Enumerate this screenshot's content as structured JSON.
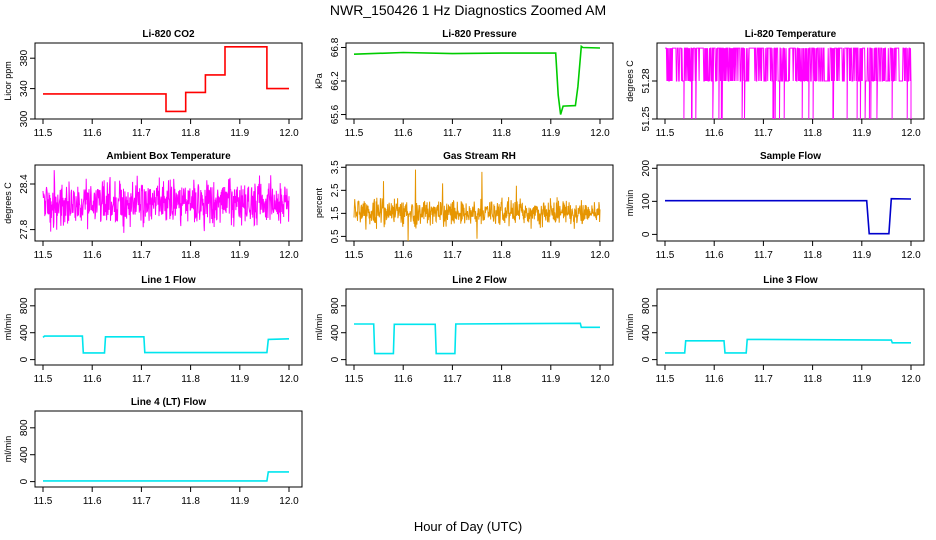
{
  "figure": {
    "title": "NWR_150426  1 Hz Diagnostics Zoomed AM",
    "xlabel": "Hour of Day (UTC)"
  },
  "chart_data": [
    {
      "type": "line",
      "title": "Li-820 CO2",
      "ylabel": "Licor ppm",
      "color": "#ff0000",
      "xlim": [
        11.5,
        12.0
      ],
      "ylim": [
        300,
        400
      ],
      "xticks": [
        "11.5",
        "11.6",
        "11.7",
        "11.8",
        "11.9",
        "12.0"
      ],
      "yticks": [
        300,
        340,
        380
      ],
      "ytick_labels": [
        "300",
        "340",
        "380"
      ],
      "series": [
        {
          "x": [
            11.5,
            11.75,
            11.75,
            11.79,
            11.79,
            11.83,
            11.83,
            11.87,
            11.87,
            11.955,
            11.955,
            12.0
          ],
          "y": [
            333,
            333,
            310,
            310,
            335,
            335,
            358,
            358,
            395,
            395,
            340,
            340
          ]
        }
      ]
    },
    {
      "type": "line",
      "title": "Li-820 Pressure",
      "ylabel": "kPa",
      "color": "#00cc00",
      "xlim": [
        11.5,
        12.0
      ],
      "ylim": [
        65.52,
        66.88
      ],
      "xticks": [
        "11.5",
        "11.6",
        "11.7",
        "11.8",
        "11.9",
        "12.0"
      ],
      "yticks": [
        65.6,
        66.2,
        66.8
      ],
      "ytick_labels": [
        "65.6",
        "66.2",
        "66.8"
      ],
      "series": [
        {
          "x": [
            11.5,
            11.6,
            11.7,
            11.8,
            11.91,
            11.915,
            11.92,
            11.925,
            11.95,
            11.955,
            11.962,
            11.965,
            12.0
          ],
          "y": [
            66.68,
            66.71,
            66.69,
            66.7,
            66.7,
            65.95,
            65.6,
            65.75,
            65.76,
            66.1,
            66.82,
            66.8,
            66.79
          ]
        }
      ]
    },
    {
      "type": "line",
      "title": "Li-820 Temperature",
      "ylabel": "degrees C",
      "color": "#ff00ff",
      "xlim": [
        11.5,
        12.0
      ],
      "ylim": [
        51.25,
        51.31
      ],
      "xticks": [
        "11.5",
        "11.6",
        "11.7",
        "11.8",
        "11.9",
        "12.0"
      ],
      "yticks": [
        51.25,
        51.28
      ],
      "ytick_labels": [
        "51.25",
        "51.28"
      ],
      "series": [
        {
          "x": [
            11.5,
            12.0
          ],
          "y": [
            51.28,
            51.28
          ],
          "noise": "toggle",
          "values": [
            51.28,
            51.306
          ]
        }
      ]
    },
    {
      "type": "line",
      "title": "Ambient Box Temperature",
      "ylabel": "degrees C",
      "color": "#ff00ff",
      "xlim": [
        11.5,
        12.0
      ],
      "ylim": [
        27.65,
        28.65
      ],
      "xticks": [
        "11.5",
        "11.6",
        "11.7",
        "11.8",
        "11.9",
        "12.0"
      ],
      "yticks": [
        27.8,
        28.4
      ],
      "ytick_labels": [
        "27.8",
        "28.4"
      ],
      "series": [
        {
          "x": [
            11.5,
            12.0
          ],
          "y": [
            28.2,
            28.2
          ],
          "noise": "dense",
          "range": [
            27.7,
            28.62
          ]
        }
      ]
    },
    {
      "type": "line",
      "title": "Gas Stream RH",
      "ylabel": "percent",
      "color": "#e69500",
      "xlim": [
        11.5,
        12.0
      ],
      "ylim": [
        0.3,
        3.6
      ],
      "xticks": [
        "11.5",
        "11.6",
        "11.7",
        "11.8",
        "11.9",
        "12.0"
      ],
      "yticks": [
        0.5,
        1.5,
        2.5,
        3.5
      ],
      "ytick_labels": [
        "0.5",
        "1.5",
        "2.5",
        "3.5"
      ],
      "series": [
        {
          "x": [
            11.5,
            12.0
          ],
          "y": [
            1.5,
            1.5
          ],
          "noise": "dense",
          "range": [
            0.7,
            2.4
          ],
          "spikes": [
            [
              11.625,
              3.4
            ],
            [
              11.76,
              3.3
            ],
            [
              11.56,
              2.9
            ],
            [
              11.68,
              2.8
            ],
            [
              11.83,
              2.7
            ],
            [
              11.61,
              0.3
            ],
            [
              11.75,
              0.4
            ]
          ]
        }
      ]
    },
    {
      "type": "line",
      "title": "Sample Flow",
      "ylabel": "ml/min",
      "color": "#0000cc",
      "xlim": [
        11.5,
        12.0
      ],
      "ylim": [
        -20,
        210
      ],
      "xticks": [
        "11.5",
        "11.6",
        "11.7",
        "11.8",
        "11.9",
        "12.0"
      ],
      "yticks": [
        0,
        100,
        200
      ],
      "ytick_labels": [
        "0",
        "100",
        "200"
      ],
      "series": [
        {
          "x": [
            11.5,
            11.91,
            11.915,
            11.955,
            11.96,
            12.0
          ],
          "y": [
            102,
            102,
            2,
            2,
            108,
            107
          ]
        }
      ]
    },
    {
      "type": "line",
      "title": "Line 1 Flow",
      "ylabel": "ml/min",
      "color": "#00e5ee",
      "xlim": [
        11.5,
        12.0
      ],
      "ylim": [
        -80,
        1050
      ],
      "xticks": [
        "11.5",
        "11.6",
        "11.7",
        "11.8",
        "11.9",
        "12.0"
      ],
      "yticks": [
        0,
        400,
        800
      ],
      "ytick_labels": [
        "0",
        "400",
        "800"
      ],
      "series": [
        {
          "x": [
            11.5,
            11.503,
            11.58,
            11.582,
            11.625,
            11.627,
            11.705,
            11.707,
            11.955,
            11.958,
            12.0
          ],
          "y": [
            330,
            350,
            350,
            100,
            100,
            340,
            340,
            105,
            105,
            300,
            310
          ]
        }
      ]
    },
    {
      "type": "line",
      "title": "Line 2 Flow",
      "ylabel": "ml/min",
      "color": "#00e5ee",
      "xlim": [
        11.5,
        12.0
      ],
      "ylim": [
        -80,
        1050
      ],
      "xticks": [
        "11.5",
        "11.6",
        "11.7",
        "11.8",
        "11.9",
        "12.0"
      ],
      "yticks": [
        0,
        400,
        800
      ],
      "ytick_labels": [
        "0",
        "400",
        "800"
      ],
      "series": [
        {
          "x": [
            11.5,
            11.54,
            11.542,
            11.58,
            11.582,
            11.665,
            11.667,
            11.705,
            11.707,
            11.96,
            11.962,
            12.0
          ],
          "y": [
            530,
            530,
            90,
            90,
            525,
            525,
            90,
            90,
            530,
            540,
            480,
            480
          ]
        }
      ]
    },
    {
      "type": "line",
      "title": "Line 3 Flow",
      "ylabel": "ml/min",
      "color": "#00e5ee",
      "xlim": [
        11.5,
        12.0
      ],
      "ylim": [
        -80,
        1050
      ],
      "xticks": [
        "11.5",
        "11.6",
        "11.7",
        "11.8",
        "11.9",
        "12.0"
      ],
      "yticks": [
        0,
        400,
        800
      ],
      "ytick_labels": [
        "0",
        "400",
        "800"
      ],
      "series": [
        {
          "x": [
            11.5,
            11.54,
            11.542,
            11.62,
            11.622,
            11.665,
            11.667,
            11.96,
            11.962,
            12.0
          ],
          "y": [
            100,
            100,
            280,
            280,
            100,
            100,
            300,
            290,
            250,
            250
          ]
        }
      ]
    },
    {
      "type": "line",
      "title": "Line 4 (LT) Flow",
      "ylabel": "ml/min",
      "color": "#00e5ee",
      "xlim": [
        11.5,
        12.0
      ],
      "ylim": [
        -80,
        1050
      ],
      "xticks": [
        "11.5",
        "11.6",
        "11.7",
        "11.8",
        "11.9",
        "12.0"
      ],
      "yticks": [
        0,
        400,
        800
      ],
      "ytick_labels": [
        "0",
        "400",
        "800"
      ],
      "series": [
        {
          "x": [
            11.5,
            11.955,
            11.958,
            12.0
          ],
          "y": [
            10,
            10,
            145,
            145
          ]
        }
      ]
    }
  ]
}
